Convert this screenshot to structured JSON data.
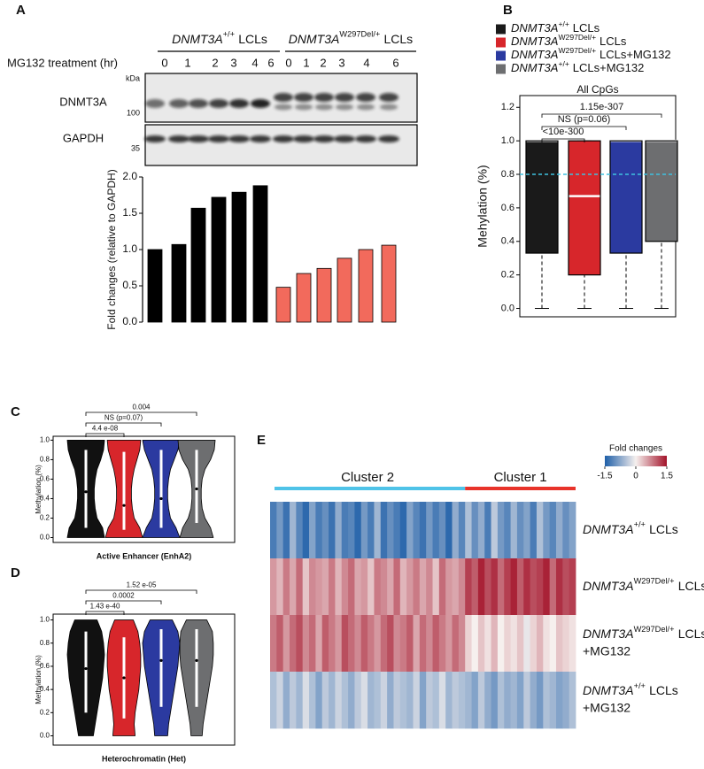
{
  "panel_labels": [
    "A",
    "B",
    "C",
    "D",
    "E"
  ],
  "blot": {
    "groups": [
      {
        "gene": "DNMT3A",
        "sup": "+/+",
        "rest": "LCLs"
      },
      {
        "gene": "DNMT3A",
        "sup": "W297Del/+",
        "rest": "LCLs"
      }
    ],
    "treatment_label": "MG132 treatment (hr)",
    "lanes": [
      0,
      1,
      2,
      3,
      4,
      6,
      0,
      1,
      2,
      3,
      4,
      6
    ],
    "kda_label": "kDa",
    "proteins": [
      {
        "name": "DNMT3A",
        "marker": 100
      },
      {
        "name": "GAPDH",
        "marker": 35
      }
    ]
  },
  "chart_data": [
    {
      "type": "bar",
      "y_label": "Fold changes (relative to GAPDH)",
      "ylim": [
        0,
        2
      ],
      "yticks": [
        {
          "value": 0,
          "label": "0.0"
        },
        0.5,
        {
          "value": 1,
          "label": "1.0"
        },
        1.5,
        {
          "value": 2,
          "label": "2.0"
        }
      ],
      "series": [
        {
          "color": "#000000",
          "values": [
            1.0,
            1.07,
            1.57,
            1.72,
            1.79,
            1.88
          ]
        },
        {
          "color": "#f26a5c",
          "values": [
            0.48,
            0.67,
            0.74,
            0.88,
            1.0,
            1.06
          ]
        }
      ]
    },
    {
      "type": "box",
      "title": "All CpGs",
      "y_label": "Mehylation (%)",
      "ylim": [
        -0.05,
        1.27
      ],
      "yticks": [
        {
          "value": 0,
          "label": "0.0"
        },
        0.2,
        0.4,
        0.6,
        0.8,
        {
          "value": 1,
          "label": "1.0"
        },
        1.2
      ],
      "threshold": 0.8,
      "threshold_color": "#3ec1e0",
      "comparisons": [
        "<10e-300",
        "NS (p=0.06)",
        "1.15e-307"
      ],
      "series": [
        {
          "name": {
            "gene": "DNMT3A",
            "sup": "+/+",
            "rest": "LCLs"
          },
          "color": "#1a1a1a",
          "min": 0,
          "q1": 0.33,
          "median": 1.0,
          "q3": 1.0,
          "max": 1.0
        },
        {
          "name": {
            "gene": "DNMT3A",
            "sup": "W297Del/+",
            "rest": "LCLs"
          },
          "color": "#d7262b",
          "min": 0,
          "q1": 0.2,
          "median": 0.67,
          "q3": 1.0,
          "max": 1.0
        },
        {
          "name": {
            "gene": "DNMT3A",
            "sup": "W297Del/+",
            "rest": "LCLs+MG132"
          },
          "color": "#2b3aa0",
          "min": 0,
          "q1": 0.33,
          "median": 1.0,
          "q3": 1.0,
          "max": 1.0
        },
        {
          "name": {
            "gene": "DNMT3A",
            "sup": "+/+",
            "rest": "LCLs+MG132"
          },
          "color": "#6d6e70",
          "min": 0,
          "q1": 0.4,
          "median": 1.0,
          "q3": 1.0,
          "max": 1.0
        }
      ]
    },
    {
      "type": "violin",
      "title": "Active Enhancer (EnhA2)",
      "y_label": "Methylation (%)",
      "ylim": [
        -0.05,
        1.04
      ],
      "yticks": [
        {
          "value": 0,
          "label": "0.0"
        },
        0.2,
        0.4,
        0.6,
        0.8,
        {
          "value": 1,
          "label": "1.0"
        }
      ],
      "comparisons": [
        "4.4 e-08",
        "NS (p=0.07)",
        "0.004"
      ],
      "density_levels": [
        0,
        0.1,
        0.2,
        0.3,
        0.4,
        0.5,
        0.6,
        0.7,
        0.8,
        0.9,
        1.0
      ],
      "series": [
        {
          "color": "#111111",
          "q1": 0.1,
          "median": 0.47,
          "q3": 0.9,
          "density": [
            1,
            0.9,
            0.6,
            0.5,
            0.45,
            0.45,
            0.5,
            0.6,
            0.8,
            0.95,
            1
          ]
        },
        {
          "color": "#d7262b",
          "q1": 0.08,
          "median": 0.33,
          "q3": 0.88,
          "density": [
            1,
            0.85,
            0.55,
            0.45,
            0.4,
            0.4,
            0.45,
            0.55,
            0.7,
            0.85,
            0.9
          ]
        },
        {
          "color": "#2b3aa0",
          "q1": 0.1,
          "median": 0.4,
          "q3": 0.9,
          "density": [
            1,
            0.8,
            0.5,
            0.4,
            0.35,
            0.35,
            0.4,
            0.5,
            0.7,
            0.9,
            1
          ]
        },
        {
          "color": "#6d6e70",
          "q1": 0.15,
          "median": 0.5,
          "q3": 0.9,
          "density": [
            0.9,
            0.75,
            0.45,
            0.3,
            0.25,
            0.25,
            0.3,
            0.45,
            0.75,
            0.95,
            1
          ]
        }
      ]
    },
    {
      "type": "violin",
      "title": "Heterochromatin (Het)",
      "y_label": "Methylation (%)",
      "ylim": [
        -0.08,
        1.05
      ],
      "yticks": [
        {
          "value": 0,
          "label": "0.0"
        },
        0.2,
        0.4,
        0.6,
        0.8,
        {
          "value": 1,
          "label": "1.0"
        }
      ],
      "comparisons": [
        "1.43 e-40",
        "0.0002",
        "1.52 e-05"
      ],
      "density_levels": [
        0,
        0.1,
        0.2,
        0.3,
        0.4,
        0.5,
        0.6,
        0.7,
        0.8,
        0.9,
        1.0
      ],
      "series": [
        {
          "color": "#111111",
          "q1": 0.2,
          "median": 0.58,
          "q3": 0.9,
          "density": [
            0.4,
            0.5,
            0.6,
            0.7,
            0.8,
            0.9,
            0.95,
            1,
            0.95,
            0.85,
            0.6
          ]
        },
        {
          "color": "#d7262b",
          "q1": 0.15,
          "median": 0.5,
          "q3": 0.85,
          "density": [
            0.6,
            0.55,
            0.6,
            0.7,
            0.8,
            0.85,
            0.9,
            0.9,
            0.85,
            0.75,
            0.5
          ]
        },
        {
          "color": "#2b3aa0",
          "q1": 0.25,
          "median": 0.65,
          "q3": 0.92,
          "density": [
            0.35,
            0.4,
            0.5,
            0.6,
            0.7,
            0.8,
            0.9,
            0.95,
            1,
            0.9,
            0.6
          ]
        },
        {
          "color": "#6d6e70",
          "q1": 0.25,
          "median": 0.65,
          "q3": 0.92,
          "density": [
            0.3,
            0.35,
            0.45,
            0.55,
            0.65,
            0.75,
            0.85,
            0.9,
            0.9,
            0.85,
            0.55
          ]
        }
      ]
    }
  ],
  "heatmap": {
    "colorbar_title": "Fold changes",
    "zlim": [
      -1.5,
      1.5
    ],
    "zticks": [
      -1.5,
      0,
      1.5
    ],
    "clusters": [
      {
        "label": "Cluster 2",
        "color": "#4fc3e8"
      },
      {
        "label": "Cluster 1",
        "color": "#e8332a"
      }
    ],
    "rows": [
      {
        "label": {
          "gene": "DNMT3A",
          "sup": "+/+",
          "rest": "LCLs"
        },
        "values": [
          [
            -1.2,
            -0.9,
            -1.3,
            -0.6,
            -1.1,
            -1.4,
            -0.8,
            -1.2,
            -1.0,
            -1.3,
            -0.7,
            -1.2,
            -1.1,
            -1.4,
            -0.9,
            -1.2,
            -0.6,
            -1.3,
            -1.0,
            -1.2,
            -1.4,
            -0.8,
            -1.1,
            -1.3,
            -0.9,
            -1.2,
            -1.0,
            -1.4,
            -0.7,
            -1.1
          ],
          [
            -0.5,
            -1.0,
            -0.7,
            -1.2,
            -0.4,
            -0.9,
            -1.1,
            -0.6,
            -1.0,
            -0.8,
            -1.2,
            -0.5,
            -0.9,
            -1.1,
            -0.7,
            -1.0,
            -0.8
          ]
        ]
      },
      {
        "label": {
          "gene": "DNMT3A",
          "sup": "W297Del/+",
          "rest": "LCLs"
        },
        "values": [
          [
            0.6,
            0.4,
            0.8,
            0.5,
            0.9,
            0.3,
            0.7,
            0.6,
            0.5,
            0.8,
            0.4,
            0.7,
            0.9,
            0.5,
            0.6,
            0.3,
            0.8,
            0.7,
            0.5,
            0.9,
            0.4,
            0.6,
            0.8,
            0.5,
            0.7,
            0.3,
            0.9,
            0.6,
            0.5,
            0.7
          ],
          [
            1.2,
            1.0,
            1.4,
            1.1,
            1.3,
            0.9,
            1.2,
            1.4,
            1.0,
            1.3,
            1.1,
            1.2,
            1.4,
            0.9,
            1.3,
            1.1,
            1.2
          ]
        ]
      },
      {
        "label": {
          "gene": "DNMT3A",
          "sup": "W297Del/+",
          "rest": "LCLs",
          "line2": "+MG132"
        },
        "values": [
          [
            0.8,
            1.0,
            0.6,
            0.9,
            1.1,
            0.7,
            0.9,
            0.5,
            1.0,
            0.8,
            0.6,
            1.1,
            0.9,
            0.7,
            1.0,
            0.8,
            0.6,
            0.9,
            1.1,
            0.7,
            0.8,
            1.0,
            0.5,
            0.9,
            0.7,
            1.0,
            0.8,
            0.6,
            0.9,
            0.7
          ],
          [
            0.2,
            0.0,
            0.3,
            0.1,
            0.4,
            0.0,
            0.2,
            0.1,
            0.3,
            -0.1,
            0.2,
            0.4,
            0.1,
            0.0,
            0.3,
            0.2,
            0.1
          ]
        ]
      },
      {
        "label": {
          "gene": "DNMT3A",
          "sup": "+/+",
          "rest": "LCLs",
          "line2": "+MG132"
        },
        "values": [
          [
            -0.5,
            -0.3,
            -0.7,
            -0.4,
            -0.6,
            -0.2,
            -0.5,
            -0.8,
            -0.4,
            -0.6,
            -0.3,
            -0.5,
            -0.7,
            -0.4,
            -0.2,
            -0.6,
            -0.5,
            -0.3,
            -0.7,
            -0.4,
            -0.5,
            -0.6,
            -0.3,
            -0.8,
            -0.4,
            -0.5,
            -0.2,
            -0.6,
            -0.4,
            -0.5
          ],
          [
            -0.6,
            -0.8,
            -0.4,
            -0.7,
            -0.9,
            -0.5,
            -0.7,
            -0.6,
            -0.8,
            -0.4,
            -0.7,
            -0.9,
            -0.5,
            -0.6,
            -0.8,
            -0.7,
            -0.5
          ]
        ]
      }
    ]
  }
}
